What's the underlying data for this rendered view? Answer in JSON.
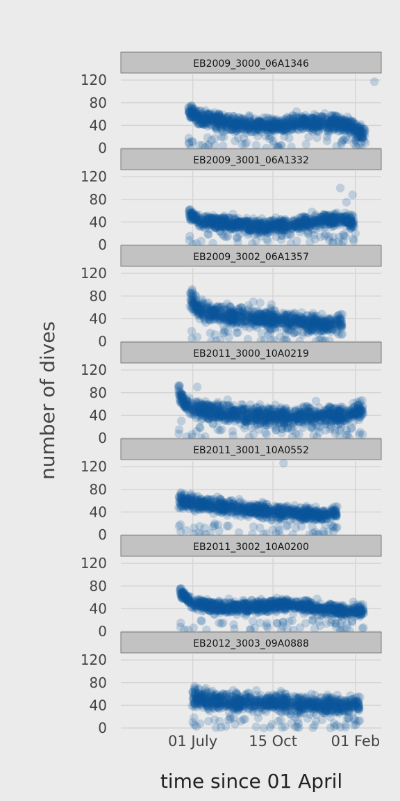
{
  "chart_data": {
    "type": "scatter",
    "title": "",
    "xlabel": "time since 01 April",
    "ylabel": "number of dives",
    "x_ticks": [
      "01 July",
      "15 Oct",
      "01 Feb"
    ],
    "x_tick_days": [
      91,
      197,
      306
    ],
    "xlim_days": [
      -4,
      340
    ],
    "y_ticks": [
      "0",
      "40",
      "80",
      "120"
    ],
    "ylim": [
      0,
      130
    ],
    "grid": true,
    "legend": "none",
    "point_color": "#0a5699",
    "point_opacity": 0.2,
    "note": "x values = days since 01 April; series are dense point clouds summarized as baseline trends plus notable points",
    "series": [
      {
        "name": "EB2009_3000_06A1346",
        "x_range": [
          85,
          320
        ],
        "trend": [
          [
            85,
            70
          ],
          [
            95,
            55
          ],
          [
            130,
            45
          ],
          [
            160,
            40
          ],
          [
            200,
            40
          ],
          [
            240,
            45
          ],
          [
            280,
            45
          ],
          [
            300,
            40
          ],
          [
            320,
            20
          ]
        ],
        "spread": 12,
        "outliers": [
          [
            86,
            8
          ],
          [
            104,
            5
          ],
          [
            129,
            20
          ],
          [
            188,
            0
          ],
          [
            207,
            5
          ],
          [
            307,
            2
          ],
          [
            331,
            117
          ]
        ]
      },
      {
        "name": "EB2009_3001_06A1332",
        "x_range": [
          86,
          305
        ],
        "trend": [
          [
            86,
            55
          ],
          [
            100,
            42
          ],
          [
            140,
            38
          ],
          [
            180,
            32
          ],
          [
            220,
            35
          ],
          [
            260,
            42
          ],
          [
            290,
            45
          ],
          [
            305,
            35
          ]
        ],
        "spread": 10,
        "outliers": [
          [
            286,
            100
          ],
          [
            294,
            75
          ],
          [
            302,
            88
          ],
          [
            306,
            20
          ],
          [
            290,
            5
          ],
          [
            303,
            10
          ]
        ]
      },
      {
        "name": "EB2009_3002_06A1357",
        "x_range": [
          87,
          289
        ],
        "trend": [
          [
            87,
            78
          ],
          [
            100,
            55
          ],
          [
            140,
            45
          ],
          [
            180,
            40
          ],
          [
            220,
            35
          ],
          [
            260,
            30
          ],
          [
            289,
            35
          ]
        ],
        "spread": 13,
        "outliers": [
          [
            171,
            70
          ],
          [
            180,
            68
          ],
          [
            195,
            65
          ],
          [
            186,
            2
          ],
          [
            214,
            3
          ],
          [
            225,
            15
          ]
        ]
      },
      {
        "name": "EB2011_3000_10A0219",
        "x_range": [
          72,
          317
        ],
        "trend": [
          [
            72,
            85
          ],
          [
            80,
            60
          ],
          [
            100,
            50
          ],
          [
            150,
            42
          ],
          [
            200,
            38
          ],
          [
            250,
            40
          ],
          [
            290,
            40
          ],
          [
            317,
            48
          ]
        ],
        "spread": 14,
        "outliers": [
          [
            97,
            90
          ],
          [
            90,
            2
          ],
          [
            102,
            0
          ],
          [
            255,
            2
          ],
          [
            312,
            10
          ],
          [
            76,
            30
          ]
        ]
      },
      {
        "name": "EB2011_3001_10A0552",
        "x_range": [
          72,
          282
        ],
        "trend": [
          [
            72,
            60
          ],
          [
            100,
            55
          ],
          [
            140,
            48
          ],
          [
            180,
            42
          ],
          [
            220,
            38
          ],
          [
            260,
            35
          ],
          [
            282,
            40
          ]
        ],
        "spread": 10,
        "outliers": [
          [
            211,
            126
          ],
          [
            92,
            2
          ],
          [
            99,
            3
          ],
          [
            270,
            5
          ],
          [
            277,
            15
          ],
          [
            73,
            15
          ]
        ]
      },
      {
        "name": "EB2011_3002_10A0200",
        "x_range": [
          74,
          318
        ],
        "trend": [
          [
            74,
            70
          ],
          [
            90,
            50
          ],
          [
            130,
            42
          ],
          [
            180,
            44
          ],
          [
            220,
            48
          ],
          [
            260,
            40
          ],
          [
            300,
            35
          ],
          [
            318,
            35
          ]
        ],
        "spread": 9,
        "outliers": [
          [
            303,
            52
          ],
          [
            208,
            2
          ],
          [
            216,
            4
          ],
          [
            290,
            3
          ],
          [
            315,
            5
          ],
          [
            80,
            3
          ]
        ]
      },
      {
        "name": "EB2012_3003_09A0888",
        "x_range": [
          90,
          312
        ],
        "trend": [
          [
            90,
            55
          ],
          [
            110,
            50
          ],
          [
            150,
            45
          ],
          [
            200,
            45
          ],
          [
            250,
            40
          ],
          [
            290,
            40
          ],
          [
            312,
            42
          ]
        ],
        "spread": 13,
        "outliers": [
          [
            91,
            10
          ],
          [
            96,
            3
          ],
          [
            185,
            0
          ],
          [
            229,
            2
          ],
          [
            304,
            5
          ],
          [
            248,
            60
          ]
        ]
      }
    ]
  }
}
